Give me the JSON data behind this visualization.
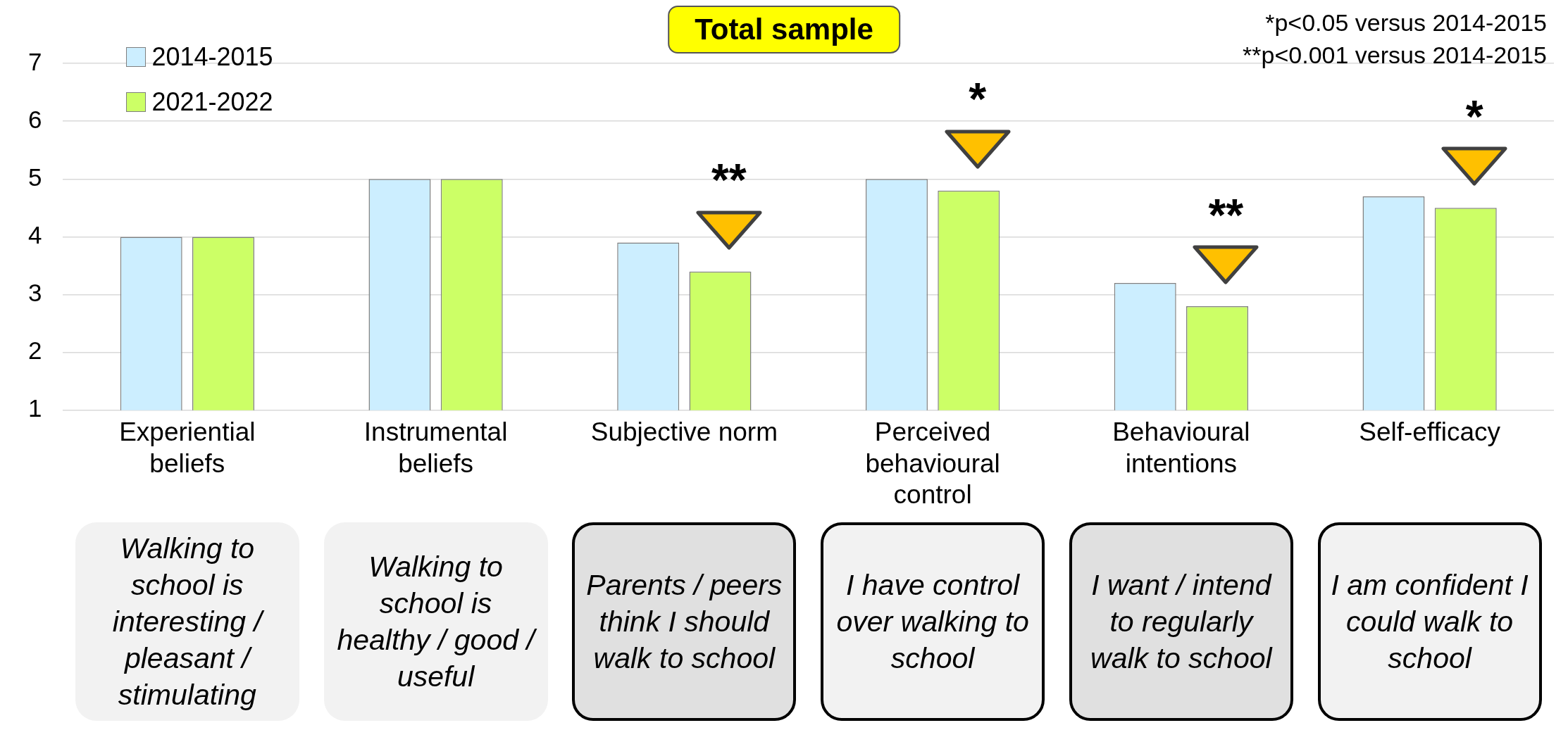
{
  "chart_data": {
    "type": "bar",
    "title": "Total sample",
    "categories": [
      "Experiential beliefs",
      "Instrumental beliefs",
      "Subjective norm",
      "Perceived behavioural control",
      "Behavioural intentions",
      "Self-efficacy"
    ],
    "series": [
      {
        "name": "2014-2015",
        "color": "#cceeff",
        "values": [
          4,
          5,
          3.9,
          5,
          3.2,
          4.7
        ]
      },
      {
        "name": "2021-2022",
        "color": "#ccff66",
        "values": [
          4,
          5,
          3.4,
          4.8,
          2.8,
          4.5
        ]
      }
    ],
    "ylim": [
      1,
      7
    ],
    "yticks": [
      1,
      2,
      3,
      4,
      5,
      6,
      7
    ],
    "grid": "y",
    "legend": "top left",
    "annotations": [
      "*p<0.05 versus 2014-2015",
      "**p<0.001 versus 2014-2015",
      "**",
      "*",
      "**",
      "*",
      "Walking to school is interesting / pleasant / stimulating",
      "Walking to school is healthy / good / useful",
      "Parents / peers think I should walk to school",
      "I have control over walking to school",
      "I want / intend to regularly walk to school",
      "I am confident I could walk to school"
    ]
  }
}
